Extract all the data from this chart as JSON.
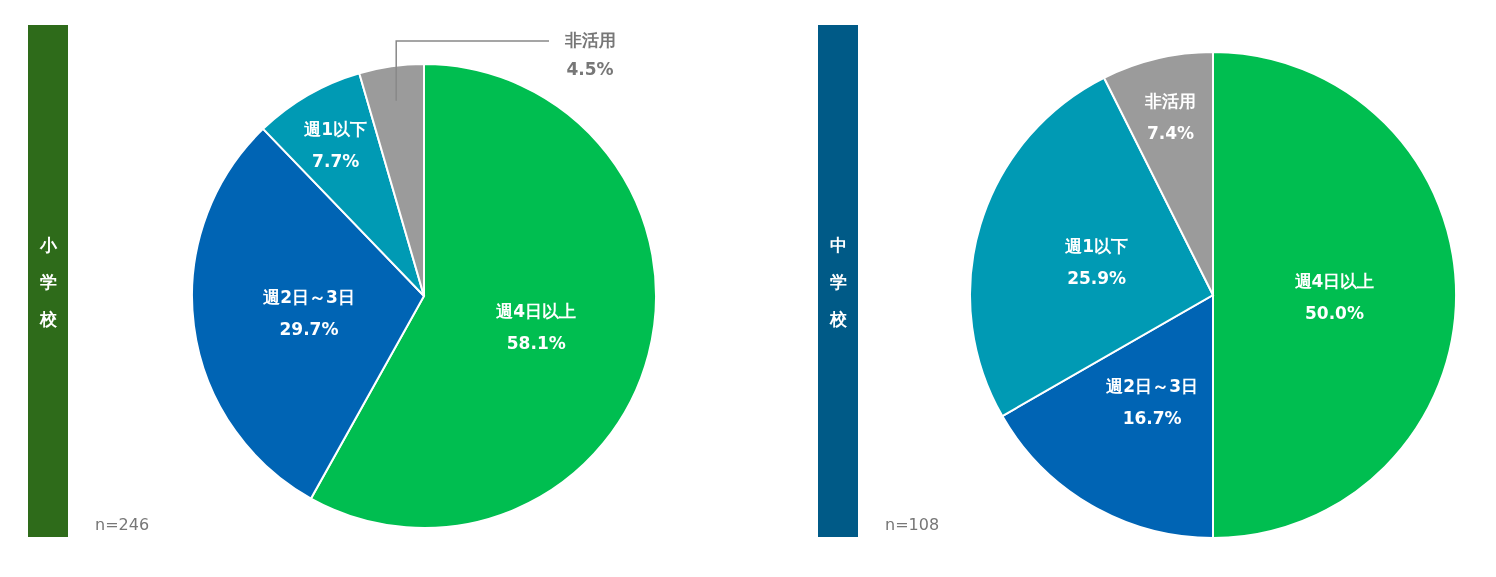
{
  "chart_data": [
    {
      "type": "pie",
      "title": "小学校",
      "categories": [
        "週4日以上",
        "週2日～3日",
        "週1以下",
        "非活用"
      ],
      "values": [
        58.1,
        29.7,
        7.7,
        4.5
      ],
      "value_labels": [
        "58.1%",
        "29.7%",
        "7.7%",
        "4.5%"
      ],
      "colors": [
        "#00be50",
        "#0064b4",
        "#009ab4",
        "#9b9b9b"
      ],
      "annotations": [
        "n=246"
      ],
      "legend": false
    },
    {
      "type": "pie",
      "title": "中学校",
      "categories": [
        "週4日以上",
        "週2日～3日",
        "週1以下",
        "非活用"
      ],
      "values": [
        50.0,
        16.7,
        25.9,
        7.4
      ],
      "value_labels": [
        "50.0%",
        "16.7%",
        "25.9%",
        "7.4%"
      ],
      "colors": [
        "#00be50",
        "#0064b4",
        "#009ab4",
        "#9b9b9b"
      ],
      "annotations": [
        "n=108"
      ],
      "legend": false
    }
  ]
}
